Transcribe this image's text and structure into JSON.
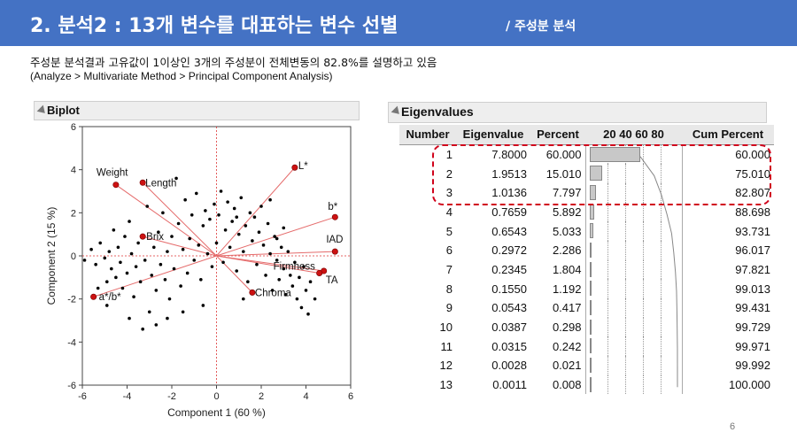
{
  "slide": {
    "title": "2. 분석2 : 13개 변수를 대표하는 변수 선별",
    "title_sub": "/ 주성분 분석",
    "description": "주성분 분석결과 고유값이 1이상인 3개의 주성분이 전체변동의 82.8%를 설명하고 있음",
    "menu_path": "(Analyze  >  Multivariate Method  >  Principal Component Analysis)",
    "page_number": "6",
    "title_bar_color": "#4472c4",
    "highlight_color": "#d0021b"
  },
  "biplot": {
    "panel_title": "Biplot",
    "chart_data": {
      "type": "scatter",
      "xlabel": "Component 1  (60 %)",
      "ylabel": "Component 2  (15 %)",
      "xlim": [
        -6,
        6
      ],
      "ylim": [
        -6,
        6
      ],
      "xticks": [
        "-6",
        "-4",
        "-2",
        "0",
        "2",
        "4",
        "6"
      ],
      "yticks": [
        "6",
        "4",
        "2",
        "0",
        "-2",
        "-4",
        "-6"
      ],
      "loadings": [
        {
          "name": "Weight",
          "x": -4.5,
          "y": 3.3
        },
        {
          "name": "Length",
          "x": -3.3,
          "y": 3.4
        },
        {
          "name": "L*",
          "x": 3.5,
          "y": 4.1
        },
        {
          "name": "b*",
          "x": 5.3,
          "y": 1.8
        },
        {
          "name": "IAD",
          "x": 5.3,
          "y": 0.2
        },
        {
          "name": "TA",
          "x": 4.8,
          "y": -0.7
        },
        {
          "name": "Firmness",
          "x": 4.6,
          "y": -0.8
        },
        {
          "name": "Chroma",
          "x": 1.6,
          "y": -1.7
        },
        {
          "name": "Brix",
          "x": -3.3,
          "y": 0.9
        },
        {
          "name": "a*/b*",
          "x": -5.5,
          "y": -1.9
        }
      ],
      "scores": [
        [
          -5.9,
          -0.2
        ],
        [
          -5.6,
          0.3
        ],
        [
          -5.4,
          -0.4
        ],
        [
          -5.2,
          0.6
        ],
        [
          -5.0,
          -0.1
        ],
        [
          -4.9,
          -1.2
        ],
        [
          -4.8,
          0.2
        ],
        [
          -4.7,
          -0.6
        ],
        [
          -4.6,
          1.2
        ],
        [
          -4.5,
          -1.0
        ],
        [
          -4.4,
          0.4
        ],
        [
          -4.3,
          -0.3
        ],
        [
          -4.2,
          -1.5
        ],
        [
          -4.1,
          0.9
        ],
        [
          -4.0,
          -0.8
        ],
        [
          -3.9,
          1.6
        ],
        [
          -3.8,
          0.1
        ],
        [
          -3.7,
          -1.9
        ],
        [
          -3.6,
          -0.5
        ],
        [
          -3.5,
          0.6
        ],
        [
          -3.4,
          -1.2
        ],
        [
          -3.3,
          -3.4
        ],
        [
          -3.2,
          -0.2
        ],
        [
          -3.1,
          2.3
        ],
        [
          -3.0,
          -2.6
        ],
        [
          -2.9,
          -0.9
        ],
        [
          -2.8,
          0.4
        ],
        [
          -2.7,
          -1.6
        ],
        [
          -2.6,
          1.1
        ],
        [
          -2.5,
          -0.4
        ],
        [
          -2.4,
          2.0
        ],
        [
          -2.3,
          -1.1
        ],
        [
          -2.2,
          0.2
        ],
        [
          -2.1,
          -2.0
        ],
        [
          -2.0,
          0.9
        ],
        [
          -1.9,
          -0.6
        ],
        [
          -1.8,
          3.6
        ],
        [
          -1.7,
          1.5
        ],
        [
          -1.6,
          -1.4
        ],
        [
          -1.5,
          0.3
        ],
        [
          -1.4,
          2.6
        ],
        [
          -1.3,
          -0.8
        ],
        [
          -1.2,
          0.8
        ],
        [
          -1.1,
          1.9
        ],
        [
          -1.0,
          -0.2
        ],
        [
          -0.9,
          2.9
        ],
        [
          -0.8,
          0.5
        ],
        [
          -0.7,
          -1.1
        ],
        [
          -0.6,
          1.4
        ],
        [
          -0.5,
          2.1
        ],
        [
          -0.4,
          0.1
        ],
        [
          -0.3,
          1.7
        ],
        [
          -0.2,
          -0.5
        ],
        [
          -0.1,
          2.4
        ],
        [
          0.0,
          0.6
        ],
        [
          0.1,
          1.9
        ],
        [
          0.2,
          3.0
        ],
        [
          0.3,
          -0.3
        ],
        [
          0.4,
          1.2
        ],
        [
          0.5,
          2.5
        ],
        [
          0.6,
          0.4
        ],
        [
          0.7,
          1.6
        ],
        [
          0.8,
          2.2
        ],
        [
          0.9,
          -0.7
        ],
        [
          1.0,
          1.0
        ],
        [
          1.1,
          2.7
        ],
        [
          1.2,
          0.2
        ],
        [
          1.3,
          1.4
        ],
        [
          1.4,
          -1.2
        ],
        [
          1.5,
          2.0
        ],
        [
          1.6,
          0.7
        ],
        [
          1.7,
          1.8
        ],
        [
          1.8,
          -0.4
        ],
        [
          1.9,
          1.1
        ],
        [
          2.0,
          2.3
        ],
        [
          2.1,
          0.5
        ],
        [
          2.2,
          -0.9
        ],
        [
          2.3,
          1.5
        ],
        [
          2.4,
          0.1
        ],
        [
          2.5,
          -1.6
        ],
        [
          2.6,
          0.9
        ],
        [
          2.7,
          -0.2
        ],
        [
          2.8,
          -1.1
        ],
        [
          2.9,
          0.4
        ],
        [
          3.0,
          -0.6
        ],
        [
          3.1,
          -1.8
        ],
        [
          3.2,
          0.2
        ],
        [
          3.3,
          -0.9
        ],
        [
          3.4,
          -1.4
        ],
        [
          3.5,
          -0.3
        ],
        [
          3.6,
          -2.0
        ],
        [
          3.7,
          -1.0
        ],
        [
          3.8,
          -2.4
        ],
        [
          3.9,
          -0.5
        ],
        [
          4.0,
          -1.6
        ],
        [
          4.1,
          -2.7
        ],
        [
          4.2,
          -1.2
        ],
        [
          4.4,
          -2.0
        ],
        [
          -5.3,
          -1.5
        ],
        [
          -4.9,
          -2.3
        ],
        [
          -3.9,
          -2.9
        ],
        [
          -2.7,
          -3.2
        ],
        [
          -1.5,
          -2.6
        ],
        [
          2.4,
          2.6
        ],
        [
          3.0,
          1.3
        ],
        [
          -2.2,
          -2.9
        ],
        [
          0.9,
          1.8
        ],
        [
          -0.6,
          -2.3
        ],
        [
          1.2,
          -2.0
        ],
        [
          2.7,
          0.8
        ]
      ]
    }
  },
  "eigen": {
    "panel_title": "Eigenvalues",
    "headers": {
      "number": "Number",
      "eigenvalue": "Eigenvalue",
      "percent": "Percent",
      "scale": "20 40 60 80",
      "cum": "Cum Percent"
    },
    "chart_data": {
      "type": "table",
      "rows": [
        {
          "number": "1",
          "eigenvalue": "7.8000",
          "percent": "60.000",
          "cum": "60.000",
          "pct_value": 60.0,
          "cum_value": 60.0
        },
        {
          "number": "2",
          "eigenvalue": "1.9513",
          "percent": "15.010",
          "cum": "75.010",
          "pct_value": 15.01,
          "cum_value": 75.01
        },
        {
          "number": "3",
          "eigenvalue": "1.0136",
          "percent": "7.797",
          "cum": "82.807",
          "pct_value": 7.797,
          "cum_value": 82.807
        },
        {
          "number": "4",
          "eigenvalue": "0.7659",
          "percent": "5.892",
          "cum": "88.698",
          "pct_value": 5.892,
          "cum_value": 88.698
        },
        {
          "number": "5",
          "eigenvalue": "0.6543",
          "percent": "5.033",
          "cum": "93.731",
          "pct_value": 5.033,
          "cum_value": 93.731
        },
        {
          "number": "6",
          "eigenvalue": "0.2972",
          "percent": "2.286",
          "cum": "96.017",
          "pct_value": 2.286,
          "cum_value": 96.017
        },
        {
          "number": "7",
          "eigenvalue": "0.2345",
          "percent": "1.804",
          "cum": "97.821",
          "pct_value": 1.804,
          "cum_value": 97.821
        },
        {
          "number": "8",
          "eigenvalue": "0.1550",
          "percent": "1.192",
          "cum": "99.013",
          "pct_value": 1.192,
          "cum_value": 99.013
        },
        {
          "number": "9",
          "eigenvalue": "0.0543",
          "percent": "0.417",
          "cum": "99.431",
          "pct_value": 0.417,
          "cum_value": 99.431
        },
        {
          "number": "10",
          "eigenvalue": "0.0387",
          "percent": "0.298",
          "cum": "99.729",
          "pct_value": 0.298,
          "cum_value": 99.729
        },
        {
          "number": "11",
          "eigenvalue": "0.0315",
          "percent": "0.242",
          "cum": "99.971",
          "pct_value": 0.242,
          "cum_value": 99.971
        },
        {
          "number": "12",
          "eigenvalue": "0.0028",
          "percent": "0.021",
          "cum": "99.992",
          "pct_value": 0.021,
          "cum_value": 99.992
        },
        {
          "number": "13",
          "eigenvalue": "0.0011",
          "percent": "0.008",
          "cum": "100.000",
          "pct_value": 0.008,
          "cum_value": 100.0
        }
      ]
    }
  }
}
